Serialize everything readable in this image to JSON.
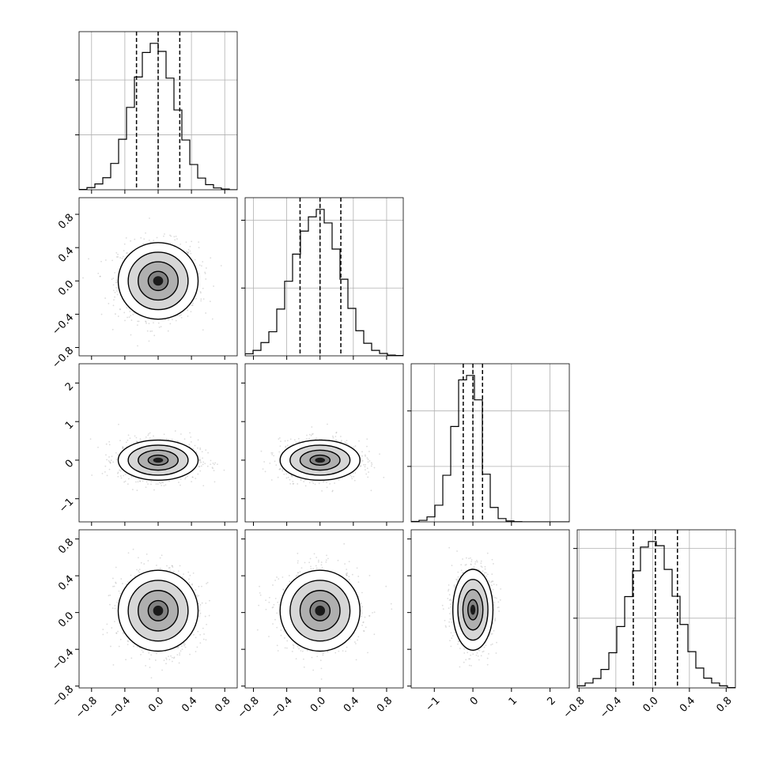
{
  "chart_data": {
    "type": "corner",
    "grid": true,
    "quantile_lines": "dashed",
    "variables": [
      {
        "range": [
          -0.95,
          0.95
        ],
        "ticks": [
          -0.8,
          -0.4,
          0.0,
          0.4,
          0.8
        ],
        "tick_labels": [
          "−0.8",
          "−0.4",
          "0.0",
          "0.4",
          "0.8"
        ],
        "quantiles": [
          -0.26,
          0.0,
          0.26
        ]
      },
      {
        "range": [
          -0.9,
          1.0
        ],
        "ticks": [
          -0.8,
          -0.4,
          0.0,
          0.4,
          0.8
        ],
        "tick_labels": [
          "−0.8",
          "−0.4",
          "0.0",
          "0.4",
          "0.8"
        ],
        "quantiles": [
          -0.24,
          0.0,
          0.25
        ]
      },
      {
        "range": [
          -1.6,
          2.5
        ],
        "ticks": [
          -1,
          0,
          1,
          2
        ],
        "tick_labels": [
          "−1",
          "0",
          "1",
          "2"
        ],
        "quantiles": [
          -0.25,
          0.0,
          0.25
        ]
      },
      {
        "range": [
          -0.82,
          0.9
        ],
        "ticks": [
          -0.8,
          -0.4,
          0.0,
          0.4,
          0.8
        ],
        "tick_labels": [
          "−0.8",
          "−0.4",
          "0.0",
          "0.4",
          "0.8"
        ],
        "quantiles": [
          -0.21,
          0.03,
          0.27
        ]
      }
    ],
    "histograms": [
      {
        "variable": 0,
        "bin_edges": [
          -0.95,
          -0.855,
          -0.76,
          -0.665,
          -0.57,
          -0.475,
          -0.38,
          -0.285,
          -0.19,
          -0.095,
          0.0,
          0.095,
          0.19,
          0.285,
          0.38,
          0.475,
          0.57,
          0.665,
          0.76,
          0.855,
          0.95
        ],
        "counts": [
          1,
          6,
          16,
          33,
          72,
          138,
          225,
          308,
          375,
          400,
          378,
          305,
          218,
          136,
          69,
          32,
          14,
          5,
          2,
          0
        ]
      },
      {
        "variable": 1,
        "bin_edges": [
          -0.9,
          -0.805,
          -0.71,
          -0.615,
          -0.52,
          -0.425,
          -0.33,
          -0.235,
          -0.14,
          -0.045,
          0.05,
          0.145,
          0.24,
          0.335,
          0.43,
          0.525,
          0.62,
          0.715,
          0.81,
          0.905,
          1.0
        ],
        "counts": [
          6,
          16,
          39,
          71,
          138,
          220,
          300,
          368,
          410,
          432,
          392,
          315,
          226,
          140,
          74,
          37,
          16,
          7,
          2,
          1
        ]
      },
      {
        "variable": 2,
        "bin_edges": [
          -1.6,
          -1.395,
          -1.19,
          -0.985,
          -0.78,
          -0.575,
          -0.37,
          -0.165,
          0.04,
          0.245,
          0.45,
          0.655,
          0.86,
          1.065,
          1.27,
          1.475,
          1.68,
          1.885,
          2.09,
          2.295,
          2.5
        ],
        "counts": [
          4,
          14,
          45,
          150,
          420,
          860,
          1280,
          1320,
          1100,
          430,
          130,
          30,
          8,
          2,
          0,
          0,
          0,
          0,
          0,
          0
        ]
      },
      {
        "variable": 3,
        "bin_edges": [
          -0.82,
          -0.734,
          -0.648,
          -0.562,
          -0.476,
          -0.39,
          -0.304,
          -0.218,
          -0.132,
          -0.046,
          0.04,
          0.126,
          0.212,
          0.298,
          0.384,
          0.47,
          0.556,
          0.642,
          0.728,
          0.814,
          0.9
        ],
        "counts": [
          6,
          14,
          27,
          53,
          101,
          176,
          262,
          336,
          404,
          420,
          408,
          340,
          263,
          182,
          104,
          57,
          28,
          14,
          6,
          1
        ]
      }
    ],
    "pairs": [
      {
        "x": 0,
        "y": 1,
        "center": [
          0.0,
          0.0
        ],
        "sigma": [
          0.24,
          0.23
        ],
        "rho": 0.0
      },
      {
        "x": 0,
        "y": 2,
        "center": [
          0.0,
          0.0
        ],
        "sigma": [
          0.24,
          0.26
        ],
        "rho": 0.0
      },
      {
        "x": 1,
        "y": 2,
        "center": [
          0.0,
          0.0
        ],
        "sigma": [
          0.24,
          0.26
        ],
        "rho": 0.0
      },
      {
        "x": 0,
        "y": 3,
        "center": [
          0.0,
          0.02
        ],
        "sigma": [
          0.24,
          0.22
        ],
        "rho": 0.0
      },
      {
        "x": 1,
        "y": 3,
        "center": [
          0.0,
          0.02
        ],
        "sigma": [
          0.24,
          0.22
        ],
        "rho": 0.0
      },
      {
        "x": 2,
        "y": 3,
        "center": [
          0.0,
          0.03
        ],
        "sigma": [
          0.26,
          0.22
        ],
        "rho": 0.05
      }
    ],
    "contour_levels": [
      "0.5σ",
      "1σ",
      "1.5σ",
      "2σ"
    ]
  }
}
